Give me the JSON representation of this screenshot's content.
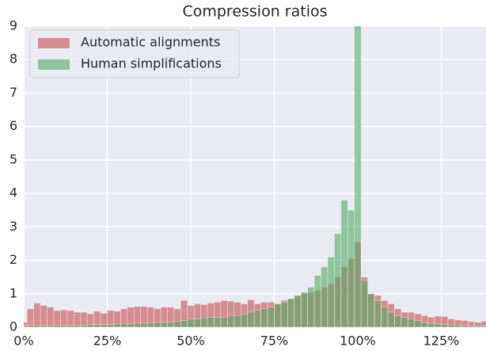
{
  "chart_data": {
    "type": "histogram",
    "title": "Compression ratios",
    "bins": [
      -1,
      1,
      3,
      5,
      7,
      9,
      11,
      13,
      15,
      17,
      19,
      21,
      23,
      25,
      27,
      29,
      31,
      33,
      35,
      37,
      39,
      41,
      43,
      45,
      47,
      49,
      51,
      53,
      55,
      57,
      59,
      61,
      63,
      65,
      67,
      69,
      71,
      73,
      75,
      77,
      79,
      81,
      83,
      85,
      87,
      89,
      91,
      93,
      95,
      97,
      99,
      101,
      103,
      105,
      107,
      109,
      111,
      113,
      115,
      117,
      119,
      121,
      123,
      125,
      127,
      129,
      131,
      133,
      135,
      137,
      139
    ],
    "series": [
      {
        "name": "Automatic alignments",
        "color": "#c44e52",
        "values": [
          0.15,
          0.55,
          0.72,
          0.65,
          0.6,
          0.5,
          0.52,
          0.5,
          0.45,
          0.45,
          0.4,
          0.48,
          0.42,
          0.5,
          0.48,
          0.55,
          0.6,
          0.62,
          0.62,
          0.6,
          0.55,
          0.6,
          0.6,
          0.55,
          0.8,
          0.65,
          0.7,
          0.68,
          0.72,
          0.75,
          0.8,
          0.78,
          0.75,
          0.7,
          0.82,
          0.7,
          0.75,
          0.75,
          0.7,
          0.8,
          0.85,
          0.95,
          1.0,
          1.05,
          1.1,
          1.2,
          1.3,
          1.5,
          1.8,
          2.05,
          2.55,
          1.5,
          1.0,
          0.95,
          0.8,
          0.7,
          0.55,
          0.45,
          0.45,
          0.4,
          0.35,
          0.3,
          0.33,
          0.32,
          0.25,
          0.22,
          0.2,
          0.17,
          0.15,
          0.18
        ]
      },
      {
        "name": "Human simplifications",
        "color": "#55a868",
        "values": [
          0.05,
          0.05,
          0.05,
          0.05,
          0.05,
          0.05,
          0.05,
          0.05,
          0.05,
          0.05,
          0.08,
          0.08,
          0.08,
          0.08,
          0.1,
          0.1,
          0.1,
          0.12,
          0.12,
          0.12,
          0.15,
          0.15,
          0.15,
          0.18,
          0.2,
          0.25,
          0.25,
          0.28,
          0.3,
          0.3,
          0.3,
          0.35,
          0.35,
          0.4,
          0.45,
          0.5,
          0.55,
          0.6,
          0.7,
          0.75,
          0.85,
          0.95,
          1.05,
          1.2,
          1.55,
          1.8,
          2.1,
          2.8,
          3.8,
          3.5,
          9.2,
          1.4,
          1.0,
          0.8,
          0.6,
          0.45,
          0.35,
          0.3,
          0.25,
          0.2,
          0.15,
          0.12,
          0.1,
          0.08,
          0.07,
          0.06,
          0.05,
          0.04,
          0.04,
          0.03
        ]
      }
    ],
    "xlim": [
      0,
      138.4
    ],
    "ylim": [
      0,
      9
    ],
    "xticks": [
      {
        "value": 0,
        "label": "0%"
      },
      {
        "value": 25,
        "label": "25%"
      },
      {
        "value": 50,
        "label": "50%"
      },
      {
        "value": 75,
        "label": "75%"
      },
      {
        "value": 100,
        "label": "100%"
      },
      {
        "value": 125,
        "label": "125%"
      }
    ],
    "yticks": [
      0,
      1,
      2,
      3,
      4,
      5,
      6,
      7,
      8,
      9
    ],
    "grid": true,
    "legend": "upper left"
  }
}
